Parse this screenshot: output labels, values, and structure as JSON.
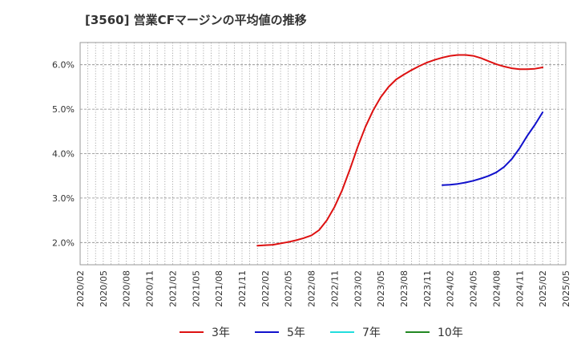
{
  "chart_data": {
    "type": "line",
    "title": "[3560]  営業CFマージンの平均値の推移",
    "xlabel": "",
    "ylabel": "",
    "ylim": [
      1.5,
      6.5
    ],
    "y_ticks": [
      2.0,
      3.0,
      4.0,
      5.0,
      6.0
    ],
    "y_tick_labels": [
      "2.0%",
      "3.0%",
      "4.0%",
      "5.0%",
      "6.0%"
    ],
    "x_tick_labels": [
      "2020/02",
      "2020/05",
      "2020/08",
      "2020/11",
      "2021/02",
      "2021/05",
      "2021/08",
      "2021/11",
      "2022/02",
      "2022/05",
      "2022/08",
      "2022/11",
      "2023/02",
      "2023/05",
      "2023/08",
      "2023/11",
      "2024/02",
      "2024/05",
      "2024/08",
      "2024/11",
      "2025/02",
      "2025/05"
    ],
    "grid": true,
    "legend_position": "bottom",
    "series": [
      {
        "name": "3年",
        "color": "#dd1111",
        "x": [
          "2022/01",
          "2022/02",
          "2022/03",
          "2022/04",
          "2022/05",
          "2022/06",
          "2022/07",
          "2022/08",
          "2022/09",
          "2022/10",
          "2022/11",
          "2022/12",
          "2023/01",
          "2023/02",
          "2023/03",
          "2023/04",
          "2023/05",
          "2023/06",
          "2023/07",
          "2023/08",
          "2023/09",
          "2023/10",
          "2023/11",
          "2023/12",
          "2024/01",
          "2024/02",
          "2024/03",
          "2024/04",
          "2024/05",
          "2024/06",
          "2024/07",
          "2024/08",
          "2024/09",
          "2024/10",
          "2024/11",
          "2024/12",
          "2025/01",
          "2025/02"
        ],
        "values": [
          1.93,
          1.94,
          1.95,
          1.98,
          2.01,
          2.05,
          2.1,
          2.16,
          2.28,
          2.5,
          2.8,
          3.18,
          3.65,
          4.15,
          4.6,
          4.97,
          5.27,
          5.5,
          5.67,
          5.78,
          5.88,
          5.97,
          6.05,
          6.11,
          6.16,
          6.2,
          6.22,
          6.22,
          6.2,
          6.15,
          6.08,
          6.01,
          5.96,
          5.92,
          5.9,
          5.9,
          5.91,
          5.94
        ]
      },
      {
        "name": "5年",
        "color": "#1111cc",
        "x": [
          "2024/01",
          "2024/02",
          "2024/03",
          "2024/04",
          "2024/05",
          "2024/06",
          "2024/07",
          "2024/08",
          "2024/09",
          "2024/10",
          "2024/11",
          "2024/12",
          "2025/01",
          "2025/02"
        ],
        "values": [
          3.29,
          3.3,
          3.32,
          3.35,
          3.39,
          3.44,
          3.5,
          3.58,
          3.7,
          3.88,
          4.12,
          4.4,
          4.65,
          4.93
        ]
      },
      {
        "name": "7年",
        "color": "#22dddd",
        "x": [],
        "values": []
      },
      {
        "name": "10年",
        "color": "#228822",
        "x": [],
        "values": []
      }
    ]
  }
}
